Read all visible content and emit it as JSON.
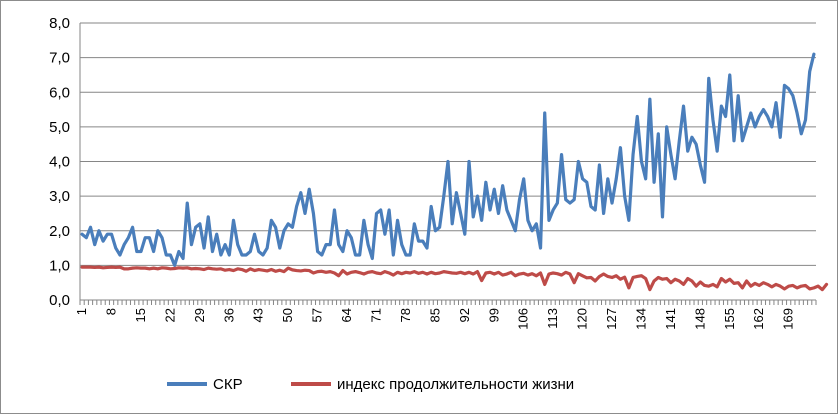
{
  "chart_data": {
    "type": "line",
    "ylim": [
      0,
      8
    ],
    "y_ticks": [
      "0,0",
      "1,0",
      "2,0",
      "3,0",
      "4,0",
      "5,0",
      "6,0",
      "7,0",
      "8,0"
    ],
    "x_tick_labels": [
      "1",
      "8",
      "15",
      "22",
      "29",
      "36",
      "43",
      "50",
      "57",
      "64",
      "71",
      "78",
      "85",
      "92",
      "99",
      "106",
      "113",
      "120",
      "127",
      "134",
      "141",
      "148",
      "155",
      "162",
      "169"
    ],
    "grid": "horizontal",
    "legend_position": "bottom",
    "colors": {
      "skr": "#4a7ebb",
      "life": "#be4b48",
      "grid": "#868686",
      "axis": "#868686"
    },
    "series": [
      {
        "name": "СКР",
        "values": [
          1.9,
          1.8,
          2.1,
          1.6,
          2.0,
          1.7,
          1.9,
          1.9,
          1.5,
          1.3,
          1.6,
          1.8,
          2.1,
          1.4,
          1.4,
          1.8,
          1.8,
          1.4,
          2.0,
          1.8,
          1.3,
          1.3,
          1.0,
          1.4,
          1.2,
          2.8,
          1.6,
          2.1,
          2.2,
          1.5,
          2.4,
          1.4,
          1.9,
          1.3,
          1.6,
          1.3,
          2.3,
          1.6,
          1.3,
          1.3,
          1.4,
          1.9,
          1.4,
          1.3,
          1.5,
          2.3,
          2.1,
          1.5,
          2.0,
          2.2,
          2.1,
          2.7,
          3.1,
          2.5,
          3.2,
          2.5,
          1.4,
          1.3,
          1.6,
          1.6,
          2.6,
          1.6,
          1.4,
          2.0,
          1.8,
          1.3,
          1.3,
          2.3,
          1.6,
          1.2,
          2.5,
          2.6,
          1.9,
          2.6,
          1.3,
          2.3,
          1.6,
          1.3,
          1.3,
          2.2,
          1.7,
          1.7,
          1.5,
          2.7,
          2.0,
          2.1,
          3.0,
          4.0,
          2.2,
          3.1,
          2.5,
          1.9,
          4.0,
          2.4,
          3.0,
          2.3,
          3.4,
          2.6,
          3.2,
          2.5,
          3.3,
          2.6,
          2.3,
          2.0,
          2.9,
          3.5,
          2.3,
          2.0,
          2.2,
          1.5,
          5.4,
          2.3,
          2.6,
          2.8,
          4.2,
          2.9,
          2.8,
          2.9,
          4.0,
          3.5,
          3.4,
          2.7,
          2.6,
          3.9,
          2.5,
          3.5,
          2.8,
          3.5,
          4.4,
          3.0,
          2.3,
          4.2,
          5.3,
          4.0,
          3.5,
          5.8,
          3.4,
          4.8,
          2.4,
          5.0,
          4.2,
          3.5,
          4.6,
          5.6,
          4.3,
          4.7,
          4.5,
          3.9,
          3.4,
          6.4,
          5.2,
          4.3,
          5.6,
          5.3,
          6.5,
          4.6,
          5.9,
          4.6,
          5.0,
          5.4,
          5.0,
          5.3,
          5.5,
          5.3,
          5.0,
          5.7,
          4.7,
          6.2,
          6.1,
          5.9,
          5.4,
          4.8,
          5.2,
          6.6,
          7.1
        ]
      },
      {
        "name": "индекс продолжительности жизни",
        "values": [
          0.95,
          0.95,
          0.95,
          0.94,
          0.95,
          0.93,
          0.94,
          0.95,
          0.94,
          0.95,
          0.9,
          0.9,
          0.92,
          0.93,
          0.92,
          0.92,
          0.9,
          0.92,
          0.9,
          0.93,
          0.92,
          0.9,
          0.91,
          0.93,
          0.92,
          0.93,
          0.9,
          0.91,
          0.9,
          0.88,
          0.92,
          0.9,
          0.89,
          0.9,
          0.86,
          0.88,
          0.85,
          0.9,
          0.88,
          0.83,
          0.9,
          0.85,
          0.88,
          0.86,
          0.84,
          0.88,
          0.83,
          0.86,
          0.82,
          0.92,
          0.87,
          0.85,
          0.84,
          0.86,
          0.85,
          0.78,
          0.82,
          0.83,
          0.8,
          0.82,
          0.78,
          0.7,
          0.85,
          0.75,
          0.8,
          0.82,
          0.79,
          0.75,
          0.8,
          0.82,
          0.78,
          0.76,
          0.82,
          0.78,
          0.72,
          0.8,
          0.76,
          0.8,
          0.78,
          0.82,
          0.77,
          0.8,
          0.75,
          0.8,
          0.76,
          0.78,
          0.82,
          0.8,
          0.78,
          0.77,
          0.8,
          0.76,
          0.8,
          0.75,
          0.82,
          0.56,
          0.78,
          0.8,
          0.75,
          0.8,
          0.72,
          0.75,
          0.8,
          0.7,
          0.75,
          0.77,
          0.72,
          0.76,
          0.7,
          0.78,
          0.45,
          0.75,
          0.78,
          0.76,
          0.72,
          0.8,
          0.75,
          0.5,
          0.76,
          0.7,
          0.64,
          0.65,
          0.55,
          0.68,
          0.75,
          0.68,
          0.65,
          0.7,
          0.6,
          0.66,
          0.35,
          0.65,
          0.68,
          0.7,
          0.62,
          0.3,
          0.55,
          0.65,
          0.6,
          0.62,
          0.5,
          0.6,
          0.55,
          0.45,
          0.62,
          0.55,
          0.4,
          0.52,
          0.42,
          0.4,
          0.45,
          0.38,
          0.62,
          0.52,
          0.6,
          0.48,
          0.5,
          0.35,
          0.55,
          0.4,
          0.48,
          0.42,
          0.5,
          0.45,
          0.38,
          0.45,
          0.4,
          0.32,
          0.4,
          0.42,
          0.35,
          0.4,
          0.42,
          0.32,
          0.35,
          0.4,
          0.3,
          0.45
        ]
      }
    ]
  }
}
